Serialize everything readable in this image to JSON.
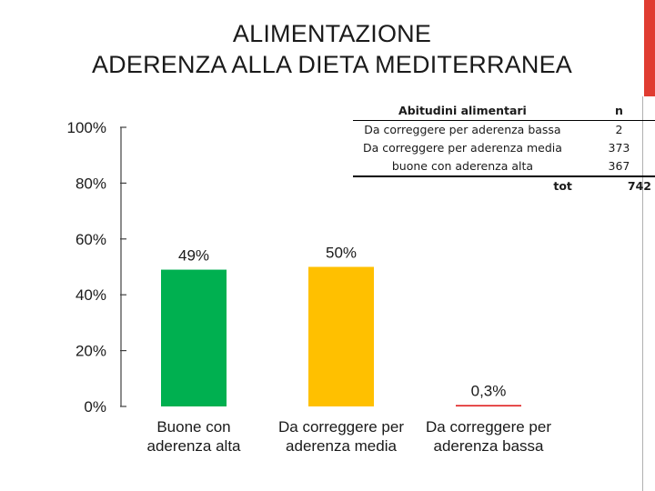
{
  "slide": {
    "title_line1": "ALIMENTAZIONE",
    "title_line2": "ADERENZA ALLA DIETA MEDITERRANEA",
    "accent_color": "#e03c31"
  },
  "summary_table": {
    "headers": [
      "Abitudini alimentari",
      "n"
    ],
    "rows": [
      [
        "Da correggere per aderenza bassa",
        "2"
      ],
      [
        "Da correggere per aderenza media",
        "373"
      ],
      [
        "buone con aderenza alta",
        "367"
      ]
    ],
    "total_label": "tot",
    "total_value": "742"
  },
  "chart_data": {
    "type": "bar",
    "categories": [
      [
        "Buone con",
        "aderenza alta"
      ],
      [
        "Da correggere per",
        "aderenza media"
      ],
      [
        "Da correggere per",
        "aderenza bassa"
      ]
    ],
    "values": [
      49,
      50,
      0.3
    ],
    "data_labels": [
      "49%",
      "50%",
      "0,3%"
    ],
    "colors": [
      "#00b050",
      "#ffc000",
      "#e02020"
    ],
    "ylim": [
      0,
      100
    ],
    "yticks": [
      0,
      20,
      40,
      60,
      80,
      100
    ],
    "ytick_labels": [
      "0%",
      "20%",
      "40%",
      "60%",
      "80%",
      "100%"
    ],
    "grid": false,
    "legend": "none"
  }
}
